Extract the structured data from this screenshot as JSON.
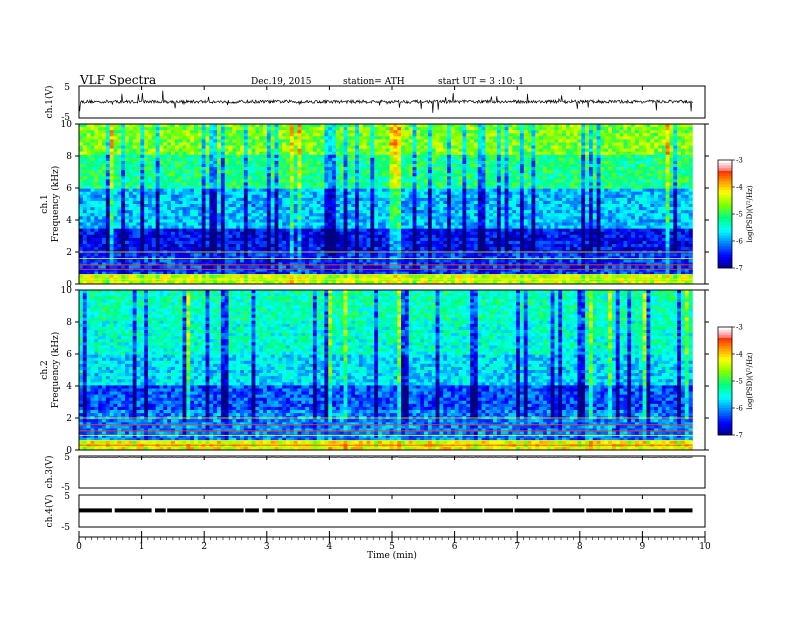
{
  "header": {
    "title": "VLF  Spectra",
    "date": "Dec.19, 2015",
    "station": "station= ATH",
    "start": "start  UT  =   3  :10: 1"
  },
  "chart_data": [
    {
      "type": "line",
      "panel": "ch1-voltage",
      "ylabel": "ch.1(V)",
      "ylim": [
        -5,
        5
      ],
      "yticks": [
        "5",
        "-5"
      ],
      "baseline": 0.1,
      "noise_amplitude": 0.5,
      "spike_amplitude": 3.5
    },
    {
      "type": "heatmap",
      "panel": "ch1-spectrogram",
      "ylabel": "ch.1",
      "ylabel2": "Frequency (kHz)",
      "ylim": [
        0,
        10
      ],
      "yticks": [
        "0",
        "2",
        "4",
        "6",
        "8",
        "10"
      ],
      "colorbar": {
        "label": "log(PSD)(V²/Hz)",
        "range": [
          -7,
          -3
        ],
        "ticks": [
          "-3",
          "-4",
          "-5",
          "-6",
          "-7"
        ]
      }
    },
    {
      "type": "heatmap",
      "panel": "ch2-spectrogram",
      "ylabel": "ch.2",
      "ylabel2": "Frequency (kHz)",
      "ylim": [
        0,
        10
      ],
      "yticks": [
        "0",
        "2",
        "4",
        "6",
        "8",
        "10"
      ],
      "colorbar": {
        "label": "log(PSD)(V²/Hz)",
        "range": [
          -7,
          -3
        ],
        "ticks": [
          "-3",
          "-4",
          "-5",
          "-6",
          "-7"
        ]
      }
    },
    {
      "type": "line",
      "panel": "ch3-voltage",
      "ylabel": "ch.3(V)",
      "ylim": [
        -5,
        5
      ],
      "yticks": [
        "5",
        "-5"
      ],
      "baseline": 4.6
    },
    {
      "type": "line",
      "panel": "ch4-voltage",
      "ylabel": "ch.4(V)",
      "ylim": [
        -5,
        5
      ],
      "yticks": [
        "5",
        "-5"
      ],
      "baseline": 0.2
    }
  ],
  "x_axis": {
    "xlabel": "Time  (min)",
    "xlim": [
      0,
      10
    ],
    "data_end": 9.8,
    "ticks": [
      "0",
      "1",
      "2",
      "3",
      "4",
      "5",
      "6",
      "7",
      "8",
      "9",
      "10"
    ]
  },
  "colors": {
    "scale": [
      "#000080",
      "#0000ff",
      "#0080ff",
      "#00ffff",
      "#00ff80",
      "#80ff00",
      "#ffff00",
      "#ff8000",
      "#ff0000",
      "#ffffff"
    ]
  }
}
